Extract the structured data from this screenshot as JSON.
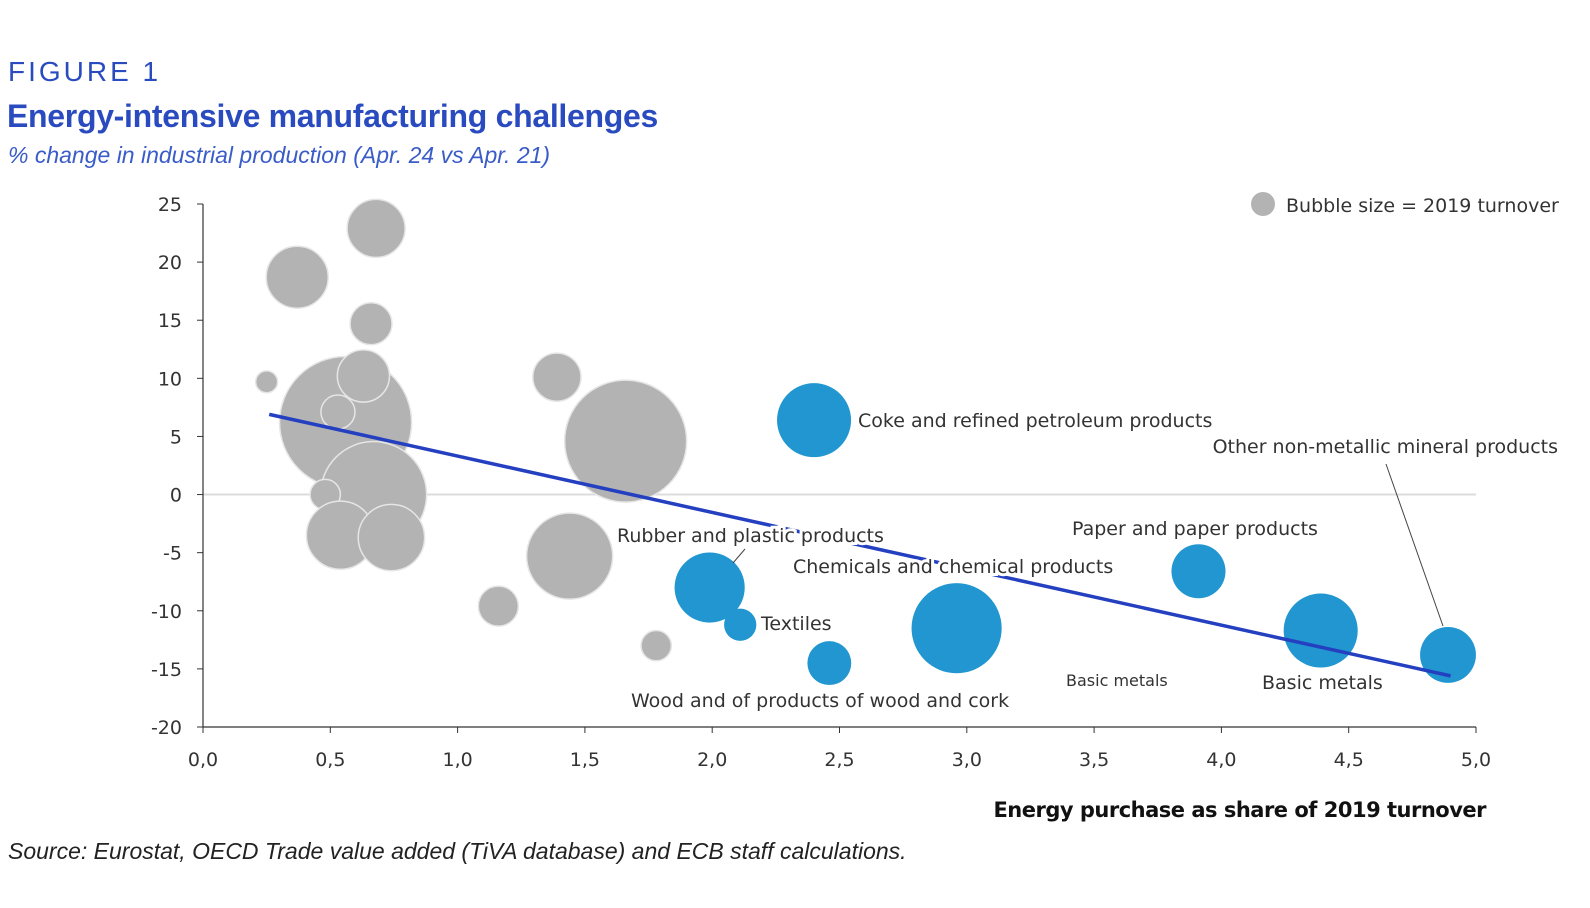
{
  "header": {
    "figure_label": "FIGURE 1",
    "title": "Energy-intensive manufacturing challenges",
    "subtitle": "% change in industrial production (Apr. 24 vs Apr. 21)"
  },
  "source": "Source: Eurostat, OECD Trade value added (TiVA database) and ECB staff calculations.",
  "chart_data": {
    "type": "bubble",
    "xlabel": "Energy purchase as share of 2019 turnover",
    "ylabel": "",
    "xlim": [
      0,
      5
    ],
    "ylim": [
      -20,
      25
    ],
    "x_ticks": [
      "0,0",
      "0,5",
      "1,0",
      "1,5",
      "2,0",
      "2,5",
      "3,0",
      "3,5",
      "4,0",
      "4,5",
      "5,0"
    ],
    "y_ticks": [
      "25",
      "20",
      "15",
      "10",
      "5",
      "0",
      "-5",
      "-10",
      "-15",
      "-20"
    ],
    "legend": {
      "label": "Bubble size = 2019 turnover",
      "position": "top-right"
    },
    "colors": {
      "other": "#b3b3b3",
      "energy_intensive": "#2196d0",
      "trend": "#2440c0",
      "accent": "#2a4bbf"
    },
    "other_points": [
      {
        "x": 0.68,
        "y": 22.9,
        "size": 8.4
      },
      {
        "x": 0.37,
        "y": 18.7,
        "size": 9.6
      },
      {
        "x": 0.66,
        "y": 14.7,
        "size": 4.4
      },
      {
        "x": 0.25,
        "y": 9.7,
        "size": 1.2
      },
      {
        "x": 0.56,
        "y": 6.2,
        "size": 43.6
      },
      {
        "x": 0.63,
        "y": 10.2,
        "size": 6.8
      },
      {
        "x": 0.53,
        "y": 7.1,
        "size": 2.9
      },
      {
        "x": 0.67,
        "y": 0.0,
        "size": 28.1
      },
      {
        "x": 0.48,
        "y": 0.0,
        "size": 2.3
      },
      {
        "x": 0.54,
        "y": -3.5,
        "size": 11.6
      },
      {
        "x": 0.74,
        "y": -3.7,
        "size": 11.0
      },
      {
        "x": 1.39,
        "y": 10.1,
        "size": 5.8
      },
      {
        "x": 1.66,
        "y": 4.6,
        "size": 37.2
      },
      {
        "x": 1.44,
        "y": -5.3,
        "size": 18.5
      },
      {
        "x": 1.16,
        "y": -9.6,
        "size": 4.0
      },
      {
        "x": 1.78,
        "y": -13.0,
        "size": 2.3
      }
    ],
    "highlighted_points": [
      {
        "label": "Coke and refined petroleum products",
        "x": 2.4,
        "y": 6.4,
        "size": 13.7
      },
      {
        "label": "Rubber and plastic products",
        "x": 1.99,
        "y": -8.0,
        "size": 12.3
      },
      {
        "label": "Textiles",
        "x": 2.11,
        "y": -11.2,
        "size": 2.6
      },
      {
        "label": "Wood and of products of wood and cork",
        "x": 2.46,
        "y": -14.5,
        "size": 4.8
      },
      {
        "label": "Chemicals and chemical products",
        "x": 2.96,
        "y": -11.5,
        "size": 20.3
      },
      {
        "label": "Paper and paper products",
        "x": 3.91,
        "y": -6.6,
        "size": 7.3
      },
      {
        "label": "Basic metals",
        "x": 4.39,
        "y": -11.7,
        "size": 13.7
      },
      {
        "label": "Other non-metallic mineral products",
        "x": 4.89,
        "y": -13.8,
        "size": 7.8
      }
    ],
    "extra_labels": [
      "Basic metals"
    ],
    "trend_line": {
      "x": [
        0.26,
        4.9
      ],
      "y": [
        6.9,
        -15.6
      ]
    }
  }
}
